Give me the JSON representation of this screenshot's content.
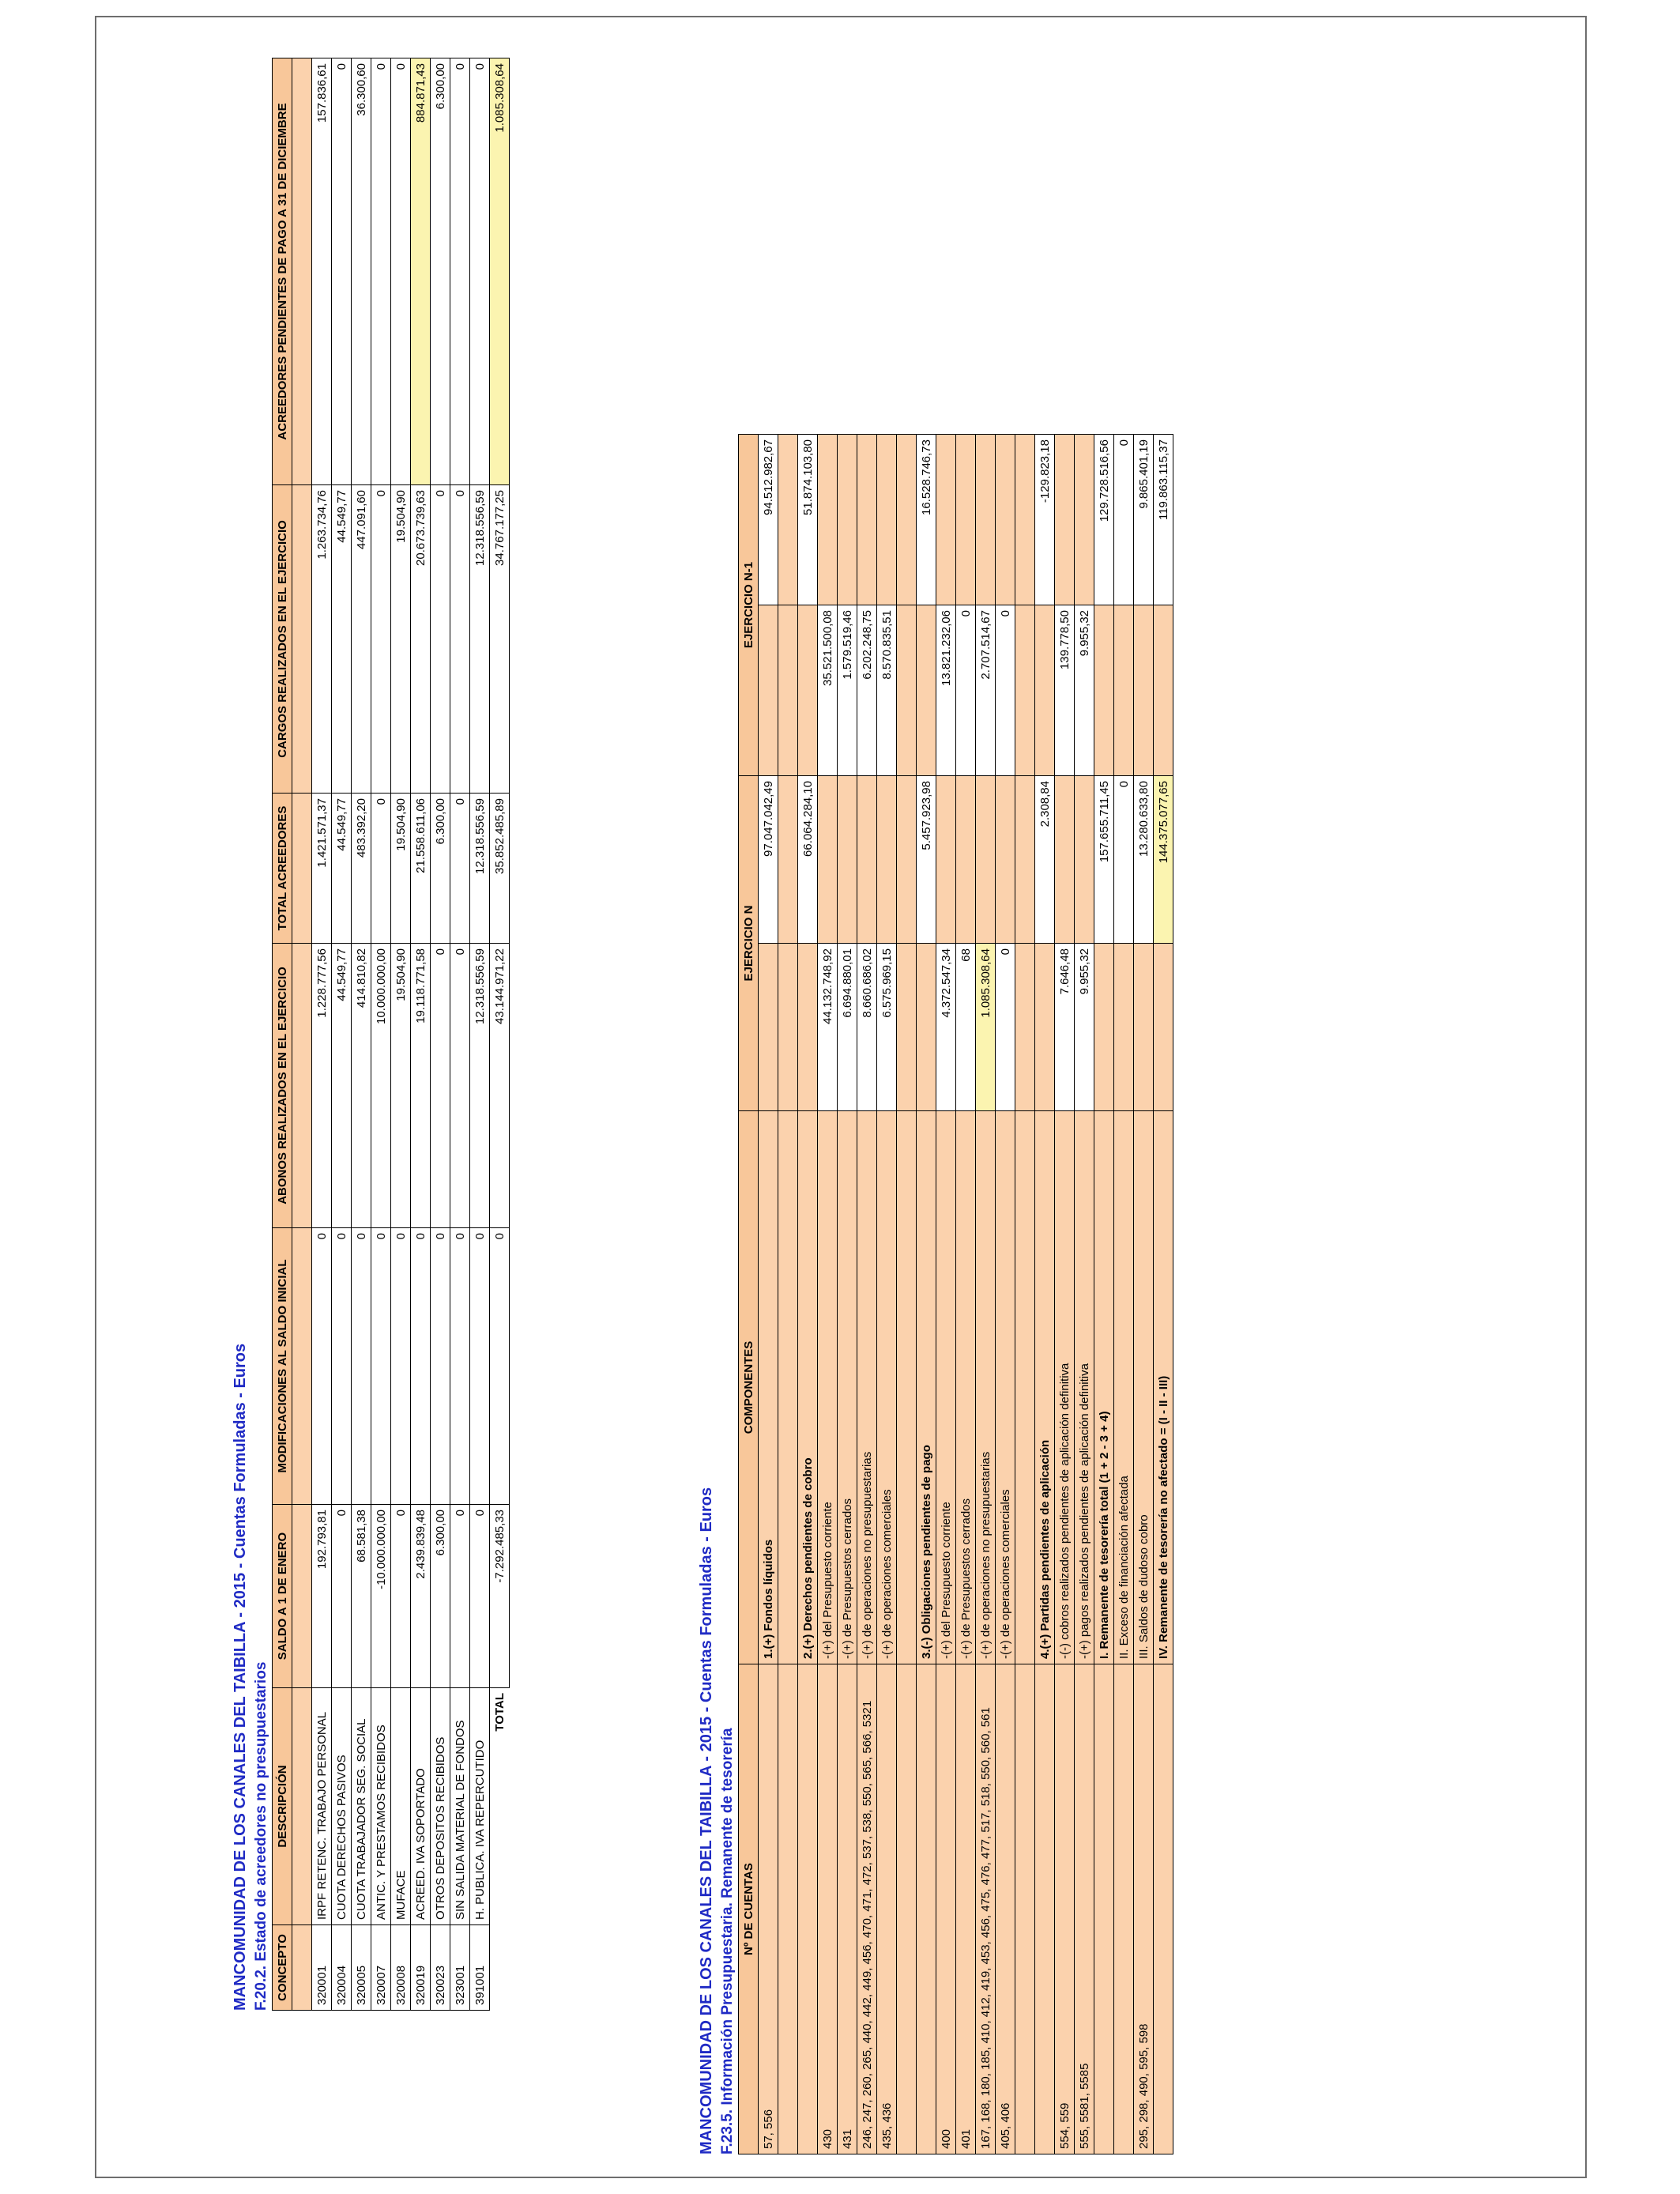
{
  "table1": {
    "header_line1": "MANCOMUNIDAD DE LOS CANALES DEL TAIBILLA - 2015 - Cuentas Formuladas - Euros",
    "header_line2": "F.20.2. Estado de acreedores no presupuestarios",
    "columns": [
      "CONCEPTO",
      "DESCRIPCIÓN",
      "SALDO A 1 DE ENERO",
      "MODIFICACIONES AL SALDO INICIAL",
      "ABONOS REALIZADOS EN EL EJERCICIO",
      "TOTAL ACREEDORES",
      "CARGOS REALIZADOS EN EL EJERCICIO",
      "ACREEDORES PENDIENTES DE PAGO A 31 DE DICIEMBRE"
    ],
    "rows": [
      {
        "concepto": "320001",
        "descripcion": "IRPF RETENC. TRABAJO PERSONAL",
        "saldo": "192.793,81",
        "modif": "0",
        "abonos": "1.228.777,56",
        "total": "1.421.571,37",
        "cargos": "1.263.734,76",
        "pend": "157.836,61"
      },
      {
        "concepto": "320004",
        "descripcion": "CUOTA DERECHOS PASIVOS",
        "saldo": "0",
        "modif": "0",
        "abonos": "44.549,77",
        "total": "44.549,77",
        "cargos": "44.549,77",
        "pend": "0"
      },
      {
        "concepto": "320005",
        "descripcion": "CUOTA TRABAJADOR SEG. SOCIAL",
        "saldo": "68.581,38",
        "modif": "0",
        "abonos": "414.810,82",
        "total": "483.392,20",
        "cargos": "447.091,60",
        "pend": "36.300,60"
      },
      {
        "concepto": "320007",
        "descripcion": "ANTIC. Y PRESTAMOS RECIBIDOS",
        "saldo": "-10.000.000,00",
        "modif": "0",
        "abonos": "10.000.000,00",
        "total": "0",
        "cargos": "0",
        "pend": "0"
      },
      {
        "concepto": "320008",
        "descripcion": "MUFACE",
        "saldo": "0",
        "modif": "0",
        "abonos": "19.504,90",
        "total": "19.504,90",
        "cargos": "19.504,90",
        "pend": "0"
      },
      {
        "concepto": "320019",
        "descripcion": "ACREED. IVA SOPORTADO",
        "saldo": "2.439.839,48",
        "modif": "0",
        "abonos": "19.118.771,58",
        "total": "21.558.611,06",
        "cargos": "20.673.739,63",
        "pend": "884.871,43"
      },
      {
        "concepto": "320023",
        "descripcion": "OTROS DEPOSITOS RECIBIDOS",
        "saldo": "6.300,00",
        "modif": "0",
        "abonos": "0",
        "total": "6.300,00",
        "cargos": "0",
        "pend": "6.300,00"
      },
      {
        "concepto": "323001",
        "descripcion": "SIN SALIDA MATERIAL DE FONDOS",
        "saldo": "0",
        "modif": "0",
        "abonos": "0",
        "total": "0",
        "cargos": "0",
        "pend": "0"
      },
      {
        "concepto": "391001",
        "descripcion": "H. PUBLICA. IVA REPERCUTIDO",
        "saldo": "0",
        "modif": "0",
        "abonos": "12.318.556,59",
        "total": "12.318.556,59",
        "cargos": "12.318.556,59",
        "pend": "0"
      }
    ],
    "total": {
      "label": "TOTAL",
      "saldo": "-7.292.485,33",
      "modif": "0",
      "abonos": "43.144.971,22",
      "total": "35.852.485,89",
      "cargos": "34.767.177,25",
      "pend": "1.085.308,64"
    }
  },
  "table2": {
    "header_line1": "MANCOMUNIDAD DE LOS CANALES DEL TAIBILLA - 2015 - Cuentas Formuladas - Euros",
    "header_line2": "F.23.5. Información Presupuestaria. Remanente de tesorería",
    "columns": [
      "Nº DE CUENTAS",
      "COMPONENTES",
      "EJERCICIO N",
      "EJERCICIO N-1"
    ],
    "rows": [
      {
        "cuentas": "57, 556",
        "comp": "1.(+) Fondos líquidos",
        "n_a": "",
        "n_b": "97.047.042,49",
        "n1_a": "",
        "n1_b": "94.512.982,67",
        "bold": true
      },
      {
        "cuentas": "",
        "comp": "",
        "n_a": "",
        "n_b": "",
        "n1_a": "",
        "n1_b": "",
        "bold": false
      },
      {
        "cuentas": "",
        "comp": "2.(+) Derechos pendientes de cobro",
        "n_a": "",
        "n_b": "66.064.284,10",
        "n1_a": "",
        "n1_b": "51.874.103,80",
        "bold": true
      },
      {
        "cuentas": "430",
        "comp": "-(+) del Presupuesto corriente",
        "n_a": "44.132.748,92",
        "n_b": "",
        "n1_a": "35.521.500,08",
        "n1_b": "",
        "bold": false
      },
      {
        "cuentas": "431",
        "comp": "-(+) de Presupuestos cerrados",
        "n_a": "6.694.880,01",
        "n_b": "",
        "n1_a": "1.579.519,46",
        "n1_b": "",
        "bold": false
      },
      {
        "cuentas": "246, 247, 260, 265, 440, 442, 449, 456, 470, 471, 472, 537, 538, 550, 565, 566, 5321",
        "comp": "-(+) de operaciones no presupuestarias",
        "n_a": "8.660.686,02",
        "n_b": "",
        "n1_a": "6.202.248,75",
        "n1_b": "",
        "bold": false
      },
      {
        "cuentas": "435, 436",
        "comp": "-(+) de operaciones comerciales",
        "n_a": "6.575.969,15",
        "n_b": "",
        "n1_a": "8.570.835,51",
        "n1_b": "",
        "bold": false
      },
      {
        "cuentas": "",
        "comp": "",
        "n_a": "",
        "n_b": "",
        "n1_a": "",
        "n1_b": "",
        "bold": false
      },
      {
        "cuentas": "",
        "comp": "3.(-) Obligaciones pendientes de pago",
        "n_a": "",
        "n_b": "5.457.923,98",
        "n1_a": "",
        "n1_b": "16.528.746,73",
        "bold": true
      },
      {
        "cuentas": "400",
        "comp": "-(+) del Presupuesto corriente",
        "n_a": "4.372.547,34",
        "n_b": "",
        "n1_a": "13.821.232,06",
        "n1_b": "",
        "bold": false
      },
      {
        "cuentas": "401",
        "comp": "-(+) de Presupuestos cerrados",
        "n_a": "68",
        "n_b": "",
        "n1_a": "0",
        "n1_b": "",
        "bold": false
      },
      {
        "cuentas": "167, 168, 180, 185, 410, 412, 419, 453, 456, 475, 476, 477, 517, 518, 550, 560, 561",
        "comp": "-(+) de operaciones no presupuestarias",
        "n_a": "1.085.308,64",
        "n_b": "",
        "n1_a": "2.707.514,67",
        "n1_b": "",
        "bold": false
      },
      {
        "cuentas": "405, 406",
        "comp": "-(+) de operaciones comerciales",
        "n_a": "0",
        "n_b": "",
        "n1_a": "0",
        "n1_b": "",
        "bold": false
      },
      {
        "cuentas": "",
        "comp": "",
        "n_a": "",
        "n_b": "",
        "n1_a": "",
        "n1_b": "",
        "bold": false
      },
      {
        "cuentas": "",
        "comp": "4.(+) Partidas pendientes de aplicación",
        "n_a": "",
        "n_b": "2.308,84",
        "n1_a": "",
        "n1_b": "-129.823,18",
        "bold": true
      },
      {
        "cuentas": "554, 559",
        "comp": "-(-) cobros realizados pendientes de aplicación definitiva",
        "n_a": "7.646,48",
        "n_b": "",
        "n1_a": "139.778,50",
        "n1_b": "",
        "bold": false
      },
      {
        "cuentas": "555, 5581, 5585",
        "comp": "-(+) pagos realizados pendientes de aplicación definitiva",
        "n_a": "9.955,32",
        "n_b": "",
        "n1_a": "9.955,32",
        "n1_b": "",
        "bold": false
      },
      {
        "cuentas": "",
        "comp": "I. Remanente de tesorería total (1 + 2 - 3 + 4)",
        "n_a": "",
        "n_b": "157.655.711,45",
        "n1_a": "",
        "n1_b": "129.728.516,56",
        "bold": true
      },
      {
        "cuentas": "",
        "comp": "II. Exceso de financiación afectada",
        "n_a": "",
        "n_b": "0",
        "n1_a": "",
        "n1_b": "0",
        "bold": false
      },
      {
        "cuentas": "295, 298, 490, 595, 598",
        "comp": "III. Saldos de dudoso cobro",
        "n_a": "",
        "n_b": "13.280.633,80",
        "n1_a": "",
        "n1_b": "9.865.401,19",
        "bold": false
      },
      {
        "cuentas": "",
        "comp": "IV. Remanente de tesorería no afectado = (I - II - III)",
        "n_a": "",
        "n_b": "144.375.077,65",
        "n1_a": "",
        "n1_b": "119.863.115,37",
        "bold": true
      }
    ]
  }
}
